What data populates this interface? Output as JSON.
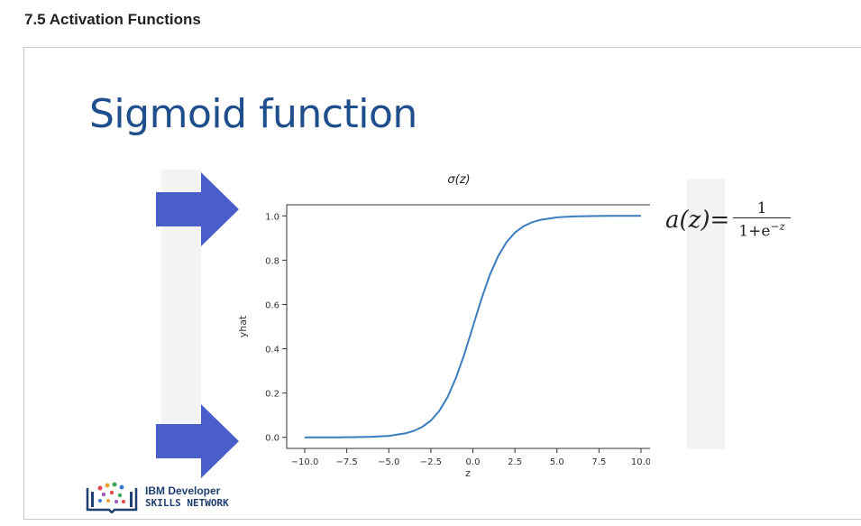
{
  "page": {
    "heading": "7.5 Activation Functions"
  },
  "slide": {
    "title": "Sigmoid function",
    "formula": {
      "lhs": "a(z)=",
      "numerator": "1",
      "denominator_base": "1+e",
      "denominator_exp": "−z"
    },
    "logo": {
      "line1": "IBM Developer",
      "line2": "SKILLS NETWORK"
    },
    "colors": {
      "title": "#1f4e8c",
      "arrow": "#4a5ec9",
      "curve": "#3b7dbf"
    }
  },
  "chart_data": {
    "type": "line",
    "title": "σ(z)",
    "xlabel": "z",
    "ylabel": "yhat",
    "xlim": [
      -10,
      10
    ],
    "ylim": [
      -0.05,
      1.05
    ],
    "xticks": [
      -10,
      -7.5,
      -5,
      -2.5,
      0,
      2.5,
      5,
      7.5,
      10
    ],
    "xtick_labels": [
      "−10.0",
      "−7.5",
      "−5.0",
      "−2.5",
      "0.0",
      "2.5",
      "5.0",
      "7.5",
      "10.0"
    ],
    "yticks": [
      0,
      0.2,
      0.4,
      0.6,
      0.8,
      1.0
    ],
    "ytick_labels": [
      "0.0",
      "0.2",
      "0.4",
      "0.6",
      "0.8",
      "1.0"
    ],
    "grid": false,
    "series": [
      {
        "x": [
          -10,
          -9,
          -8,
          -7,
          -6,
          -5,
          -4,
          -3.5,
          -3,
          -2.5,
          -2,
          -1.5,
          -1,
          -0.5,
          0,
          0.5,
          1,
          1.5,
          2,
          2.5,
          3,
          3.5,
          4,
          5,
          6,
          7,
          8,
          9,
          10
        ],
        "y": [
          0.0,
          0.0001,
          0.0003,
          0.0009,
          0.0025,
          0.0067,
          0.018,
          0.0293,
          0.0474,
          0.0759,
          0.1192,
          0.1824,
          0.2689,
          0.3775,
          0.5,
          0.6225,
          0.7311,
          0.8176,
          0.8808,
          0.9241,
          0.9526,
          0.9707,
          0.982,
          0.9933,
          0.9975,
          0.9991,
          0.9997,
          0.9999,
          1.0
        ]
      }
    ]
  }
}
